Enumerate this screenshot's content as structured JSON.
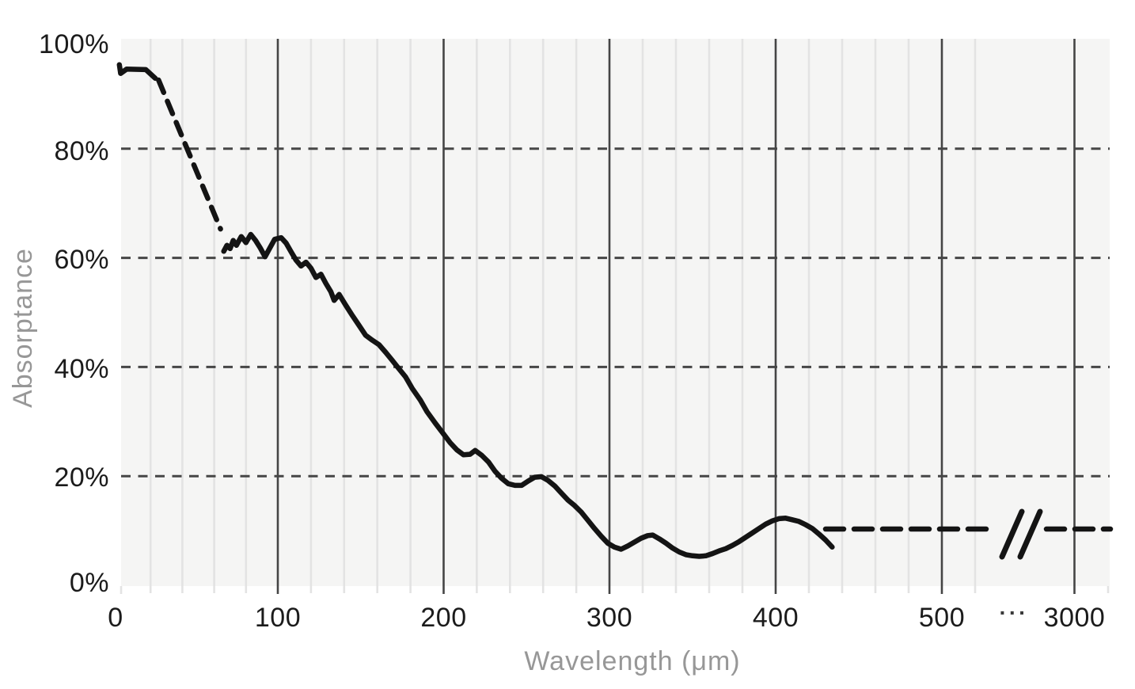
{
  "page": {
    "background_color": "#ffffff"
  },
  "chart_data": {
    "type": "line",
    "title": "",
    "xlabel": "Wavelength (μm)",
    "ylabel": "Absorptance",
    "legend": false,
    "grid": true,
    "plot_background": "#f5f5f4",
    "colors": {
      "line": "#141414",
      "minor_gridline": "#e3e3e3",
      "major_gridline": "#454545",
      "dashed_gridline": "#464646",
      "tick_label": "#1b1b1b",
      "axis_title": "#979797"
    },
    "x_axis": {
      "unit": "μm",
      "broken_axis": true,
      "break_ellipsis": "···",
      "minor_tick_step": 20,
      "major_ticks": [
        0,
        100,
        200,
        300,
        400,
        500,
        3000
      ],
      "tick_labels": [
        "0",
        "100",
        "200",
        "300",
        "400",
        "500",
        "3000"
      ],
      "minor_ticks": [
        20,
        40,
        60,
        80,
        120,
        140,
        160,
        180,
        220,
        240,
        260,
        280,
        320,
        340,
        360,
        380,
        420,
        440,
        460,
        480,
        520
      ]
    },
    "y_axis": {
      "range_pct": [
        0,
        100
      ],
      "ticks_pct": [
        100,
        80,
        60,
        40,
        20,
        0
      ],
      "tick_labels": [
        "100%",
        "80%",
        "60%",
        "40%",
        "20%",
        "0%"
      ],
      "dashed_gridlines_pct": [
        80,
        60,
        40,
        20
      ]
    },
    "series": [
      {
        "name": "absorptance-start-solid",
        "style": "solid",
        "points": [
          [
            0.4,
            95.4
          ],
          [
            1.2,
            93.8
          ],
          [
            5,
            94.6
          ],
          [
            17,
            94.5
          ],
          [
            23,
            92.9
          ]
        ]
      },
      {
        "name": "absorptance-interpolated-dashed",
        "style": "dashed",
        "points": [
          [
            25,
            92.6
          ],
          [
            64,
            65.3
          ]
        ]
      },
      {
        "name": "absorptance-measured-solid",
        "style": "solid",
        "points": [
          [
            66,
            61.2
          ],
          [
            68,
            62.3
          ],
          [
            70,
            61.7
          ],
          [
            72,
            63.2
          ],
          [
            74,
            62.3
          ],
          [
            77,
            63.9
          ],
          [
            80,
            62.8
          ],
          [
            83,
            64.3
          ],
          [
            86,
            63.2
          ],
          [
            89,
            61.8
          ],
          [
            92,
            60.2
          ],
          [
            95,
            61.8
          ],
          [
            98,
            63.4
          ],
          [
            102,
            63.7
          ],
          [
            105,
            62.7
          ],
          [
            108,
            61.1
          ],
          [
            111,
            59.6
          ],
          [
            114,
            58.5
          ],
          [
            117,
            59.2
          ],
          [
            120,
            58.1
          ],
          [
            123,
            56.4
          ],
          [
            126,
            57.0
          ],
          [
            129,
            55.3
          ],
          [
            132,
            53.8
          ],
          [
            134,
            52.2
          ],
          [
            137,
            53.3
          ],
          [
            141,
            51.3
          ],
          [
            145,
            49.4
          ],
          [
            149,
            47.6
          ],
          [
            153,
            45.8
          ],
          [
            157,
            44.9
          ],
          [
            161,
            44.1
          ],
          [
            165,
            42.7
          ],
          [
            169,
            41.2
          ],
          [
            173,
            39.7
          ],
          [
            177,
            38.2
          ],
          [
            181,
            36.1
          ],
          [
            186,
            33.9
          ],
          [
            190,
            31.8
          ],
          [
            195,
            29.7
          ],
          [
            200,
            27.7
          ],
          [
            204,
            26.1
          ],
          [
            208,
            24.8
          ],
          [
            212,
            23.9
          ],
          [
            216,
            24.0
          ],
          [
            219,
            24.7
          ],
          [
            223,
            23.8
          ],
          [
            227,
            22.6
          ],
          [
            231,
            20.9
          ],
          [
            235,
            19.6
          ],
          [
            239,
            18.6
          ],
          [
            243,
            18.3
          ],
          [
            247,
            18.3
          ],
          [
            251,
            19.1
          ],
          [
            255,
            19.8
          ],
          [
            259,
            19.9
          ],
          [
            263,
            19.2
          ],
          [
            267,
            18.2
          ],
          [
            271,
            16.9
          ],
          [
            275,
            15.6
          ],
          [
            279,
            14.6
          ],
          [
            283,
            13.4
          ],
          [
            287,
            11.9
          ],
          [
            291,
            10.4
          ],
          [
            295,
            9.0
          ],
          [
            299,
            7.7
          ],
          [
            303,
            7.0
          ],
          [
            307,
            6.6
          ],
          [
            311,
            7.2
          ],
          [
            315,
            7.9
          ],
          [
            319,
            8.6
          ],
          [
            323,
            9.1
          ],
          [
            326,
            9.2
          ],
          [
            330,
            8.5
          ],
          [
            334,
            7.7
          ],
          [
            338,
            6.8
          ],
          [
            342,
            6.1
          ],
          [
            346,
            5.6
          ],
          [
            350,
            5.4
          ],
          [
            354,
            5.3
          ],
          [
            358,
            5.4
          ],
          [
            362,
            5.8
          ],
          [
            366,
            6.3
          ],
          [
            370,
            6.7
          ],
          [
            374,
            7.3
          ],
          [
            378,
            8.0
          ],
          [
            382,
            8.8
          ],
          [
            386,
            9.6
          ],
          [
            390,
            10.4
          ],
          [
            394,
            11.2
          ],
          [
            398,
            11.8
          ],
          [
            402,
            12.2
          ],
          [
            406,
            12.3
          ],
          [
            410,
            12.0
          ],
          [
            414,
            11.7
          ],
          [
            418,
            11.1
          ],
          [
            422,
            10.4
          ],
          [
            426,
            9.4
          ],
          [
            430,
            8.3
          ],
          [
            434,
            7.0
          ]
        ]
      },
      {
        "name": "absorptance-extrapolated-dashed",
        "style": "dashed-flat-with-break",
        "pct": 10.3,
        "from_wl": 430,
        "extends_past_wl": 3000,
        "note": "flat dashed extension crossing the axis break to beyond 3000 μm"
      }
    ]
  }
}
